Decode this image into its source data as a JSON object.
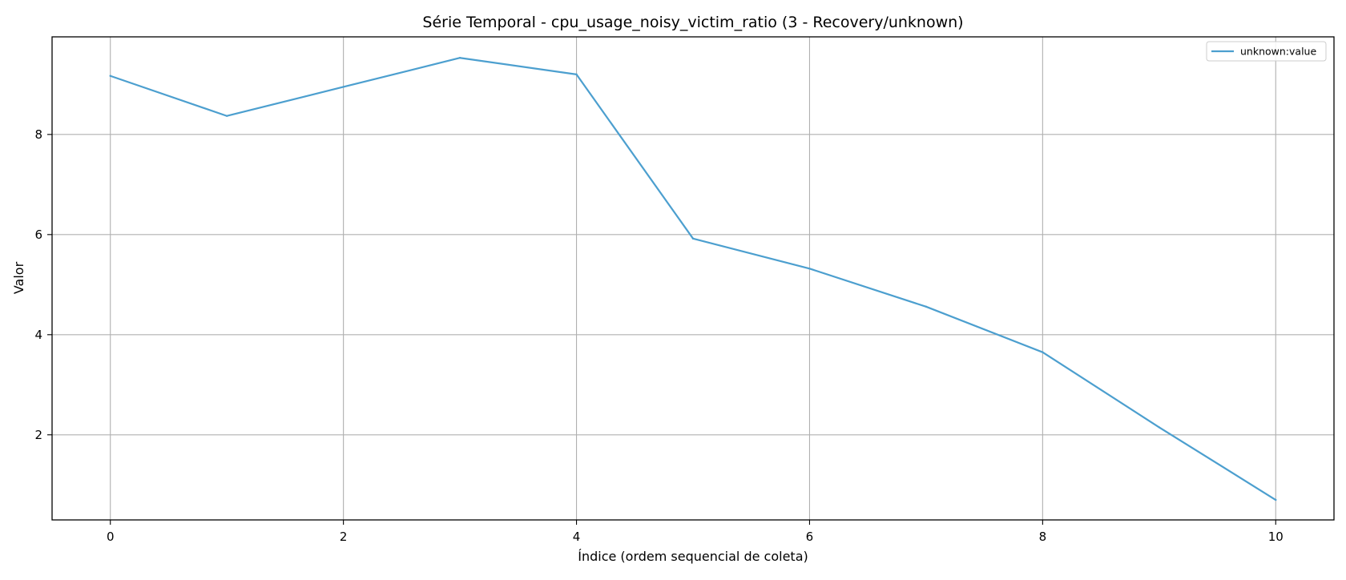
{
  "chart_data": {
    "type": "line",
    "title": "Série Temporal - cpu_usage_noisy_victim_ratio (3 - Recovery/unknown)",
    "xlabel": "Índice (ordem sequencial de coleta)",
    "ylabel": "Valor",
    "xlim": [
      -0.5,
      10.5
    ],
    "ylim": [
      0.3,
      9.95
    ],
    "xticks": [
      0,
      2,
      4,
      6,
      8,
      10
    ],
    "yticks": [
      2,
      4,
      6,
      8
    ],
    "grid": true,
    "legend_position": "top-right",
    "series": [
      {
        "name": "unknown:value",
        "color": "#4c9fcf",
        "x": [
          0,
          1,
          2,
          3,
          4,
          5,
          6,
          7,
          8,
          9,
          10
        ],
        "y": [
          9.17,
          8.37,
          8.95,
          9.53,
          9.2,
          5.92,
          5.32,
          4.56,
          3.65,
          2.15,
          0.7
        ]
      }
    ]
  }
}
